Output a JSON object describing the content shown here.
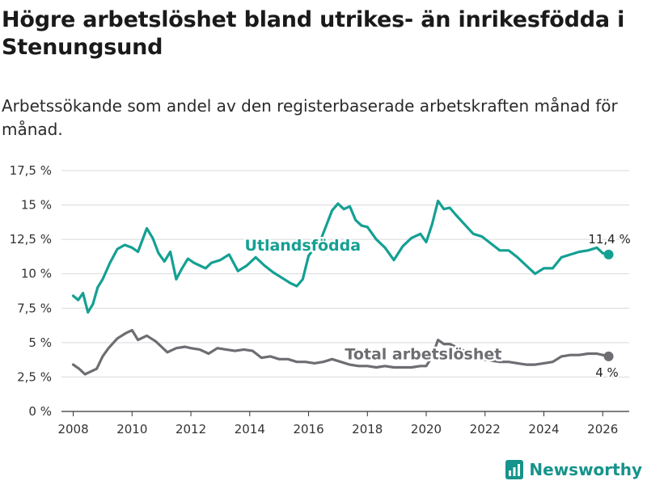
{
  "title": "Högre arbetslöshet bland utrikes- än inrikesfödda i Stenungsund",
  "subtitle": "Arbetssökande som andel av den registerbaserade arbetskraften månad för månad.",
  "brand": "Newsworthy",
  "colors": {
    "utlandsfodda": "#14a093",
    "total": "#6d6d72",
    "grid": "#d9d9d9",
    "axis": "#333333"
  },
  "chart_data": {
    "type": "line",
    "title": "Högre arbetslöshet bland utrikes- än inrikesfödda i Stenungsund",
    "xlabel": "",
    "ylabel": "",
    "ylim": [
      0,
      17.5
    ],
    "xlim": [
      2007.6,
      2026.9
    ],
    "y_ticks": [
      0,
      2.5,
      5,
      7.5,
      10,
      12.5,
      15,
      17.5
    ],
    "y_tick_labels": [
      "0 %",
      "2,5 %",
      "5 %",
      "7,5 %",
      "10 %",
      "12,5 %",
      "15 %",
      "17,5 %"
    ],
    "x_ticks": [
      2008,
      2010,
      2012,
      2014,
      2016,
      2018,
      2020,
      2022,
      2024,
      2026
    ],
    "x_tick_labels": [
      "2008",
      "2010",
      "2012",
      "2014",
      "2016",
      "2018",
      "2020",
      "2022",
      "2024",
      "2026"
    ],
    "grid": true,
    "series": [
      {
        "name": "Utlandsfödda",
        "end_label": "11,4 %",
        "x": [
          2008.0,
          2008.17,
          2008.33,
          2008.5,
          2008.67,
          2008.83,
          2009.0,
          2009.25,
          2009.5,
          2009.75,
          2010.0,
          2010.2,
          2010.5,
          2010.7,
          2010.9,
          2011.1,
          2011.3,
          2011.5,
          2011.7,
          2011.9,
          2012.1,
          2012.3,
          2012.5,
          2012.7,
          2013.0,
          2013.3,
          2013.6,
          2013.9,
          2014.2,
          2014.5,
          2014.8,
          2015.1,
          2015.4,
          2015.6,
          2015.8,
          2016.0,
          2016.2,
          2016.4,
          2016.6,
          2016.8,
          2017.0,
          2017.2,
          2017.4,
          2017.6,
          2017.8,
          2018.0,
          2018.3,
          2018.6,
          2018.9,
          2019.2,
          2019.5,
          2019.8,
          2020.0,
          2020.2,
          2020.4,
          2020.6,
          2020.8,
          2021.0,
          2021.3,
          2021.6,
          2021.9,
          2022.2,
          2022.5,
          2022.8,
          2023.1,
          2023.4,
          2023.7,
          2024.0,
          2024.3,
          2024.6,
          2024.9,
          2025.2,
          2025.5,
          2025.8,
          2026.0,
          2026.2
        ],
        "values": [
          8.4,
          8.1,
          8.6,
          7.2,
          7.8,
          9.0,
          9.6,
          10.8,
          11.8,
          12.1,
          11.9,
          11.6,
          13.3,
          12.6,
          11.5,
          10.9,
          11.6,
          9.6,
          10.4,
          11.1,
          10.8,
          10.6,
          10.4,
          10.8,
          11.0,
          11.4,
          10.2,
          10.6,
          11.2,
          10.6,
          10.1,
          9.7,
          9.3,
          9.1,
          9.6,
          11.3,
          11.9,
          12.4,
          13.5,
          14.6,
          15.1,
          14.7,
          14.9,
          13.9,
          13.5,
          13.4,
          12.5,
          11.9,
          11.0,
          12.0,
          12.6,
          12.9,
          12.3,
          13.6,
          15.3,
          14.7,
          14.8,
          14.3,
          13.6,
          12.9,
          12.7,
          12.2,
          11.7,
          11.7,
          11.2,
          10.6,
          10.0,
          10.4,
          10.4,
          11.2,
          11.4,
          11.6,
          11.7,
          11.9,
          11.5,
          11.4
        ]
      },
      {
        "name": "Total arbetslöshet",
        "end_label": "4 %",
        "x": [
          2008.0,
          2008.2,
          2008.4,
          2008.6,
          2008.8,
          2009.0,
          2009.2,
          2009.5,
          2009.8,
          2010.0,
          2010.2,
          2010.5,
          2010.8,
          2011.0,
          2011.2,
          2011.5,
          2011.8,
          2012.0,
          2012.3,
          2012.6,
          2012.9,
          2013.2,
          2013.5,
          2013.8,
          2014.1,
          2014.4,
          2014.7,
          2015.0,
          2015.3,
          2015.6,
          2015.9,
          2016.2,
          2016.5,
          2016.8,
          2017.1,
          2017.4,
          2017.7,
          2018.0,
          2018.3,
          2018.6,
          2018.9,
          2019.2,
          2019.5,
          2019.8,
          2020.0,
          2020.2,
          2020.4,
          2020.6,
          2020.8,
          2021.0,
          2021.3,
          2021.6,
          2021.9,
          2022.2,
          2022.5,
          2022.8,
          2023.1,
          2023.4,
          2023.7,
          2024.0,
          2024.3,
          2024.6,
          2024.9,
          2025.2,
          2025.5,
          2025.8,
          2026.0,
          2026.2
        ],
        "values": [
          3.4,
          3.1,
          2.7,
          2.9,
          3.1,
          4.0,
          4.6,
          5.3,
          5.7,
          5.9,
          5.2,
          5.5,
          5.1,
          4.7,
          4.3,
          4.6,
          4.7,
          4.6,
          4.5,
          4.2,
          4.6,
          4.5,
          4.4,
          4.5,
          4.4,
          3.9,
          4.0,
          3.8,
          3.8,
          3.6,
          3.6,
          3.5,
          3.6,
          3.8,
          3.6,
          3.4,
          3.3,
          3.3,
          3.2,
          3.3,
          3.2,
          3.2,
          3.2,
          3.3,
          3.3,
          4.0,
          5.2,
          4.9,
          4.9,
          4.7,
          4.4,
          4.0,
          3.8,
          3.7,
          3.6,
          3.6,
          3.5,
          3.4,
          3.4,
          3.5,
          3.6,
          4.0,
          4.1,
          4.1,
          4.2,
          4.2,
          4.1,
          4.0
        ]
      }
    ],
    "annotations": [
      {
        "text": "Utlandsfödda",
        "series": "Utlandsfödda",
        "x": 2015.8,
        "y": 11.7
      },
      {
        "text": "Total arbetslöshet",
        "series": "Total arbetslöshet",
        "x": 2019.9,
        "y": 3.8
      }
    ]
  }
}
